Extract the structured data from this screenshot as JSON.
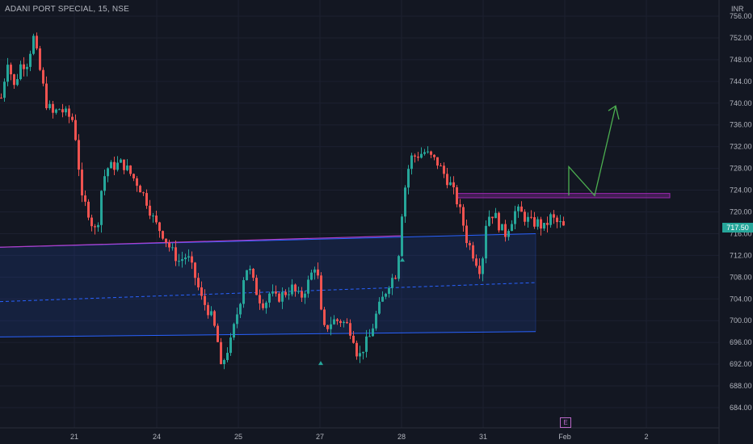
{
  "header": {
    "symbol_title": "ADANI PORT SPECIAL, 15, NSE",
    "currency": "INR"
  },
  "last_price": {
    "label": "717.50",
    "value": 717.5,
    "color": "#26a69a"
  },
  "event_marker": {
    "label": "E",
    "color": "#ba68c8"
  },
  "colors": {
    "up": "#26a69a",
    "down": "#ef5350",
    "background": "#131722",
    "channel": "#2962ff",
    "resistance_zone": "#9c27b0",
    "projection": "#4caf50"
  },
  "chart_data": {
    "type": "candlestick",
    "y_axis": {
      "range": [
        682,
        758
      ],
      "ticks": [
        684,
        688,
        692,
        696,
        700,
        704,
        708,
        712,
        716,
        720,
        724,
        728,
        732,
        736,
        740,
        744,
        748,
        752,
        756
      ]
    },
    "x_axis": {
      "ticks": [
        "21",
        "24",
        "25",
        "27",
        "28",
        "31",
        "Feb",
        "2"
      ]
    },
    "channel": {
      "upper": [
        713.5,
        716.0
      ],
      "middle": [
        703.5,
        707.0
      ],
      "lower": [
        697.0,
        698.0
      ]
    },
    "resistance_zone": [
      722.6,
      723.4
    ],
    "anchors": [
      {
        "x": 0,
        "c": 741
      },
      {
        "x": 8,
        "c": 748
      },
      {
        "x": 16,
        "c": 743
      },
      {
        "x": 24,
        "c": 747
      },
      {
        "x": 32,
        "c": 747.5
      },
      {
        "x": 40,
        "c": 752
      },
      {
        "x": 48,
        "c": 746
      },
      {
        "x": 56,
        "c": 740
      },
      {
        "x": 64,
        "c": 738
      },
      {
        "x": 72,
        "c": 739
      },
      {
        "x": 80,
        "c": 738
      },
      {
        "x": 88,
        "c": 737
      },
      {
        "x": 93,
        "c": 733
      },
      {
        "x": 100,
        "c": 722
      },
      {
        "x": 106,
        "c": 721
      },
      {
        "x": 112,
        "c": 718
      },
      {
        "x": 118,
        "c": 716
      },
      {
        "x": 124,
        "c": 724
      },
      {
        "x": 130,
        "c": 728
      },
      {
        "x": 140,
        "c": 728.5
      },
      {
        "x": 150,
        "c": 729
      },
      {
        "x": 160,
        "c": 727
      },
      {
        "x": 170,
        "c": 725
      },
      {
        "x": 180,
        "c": 722
      },
      {
        "x": 190,
        "c": 718
      },
      {
        "x": 200,
        "c": 716
      },
      {
        "x": 210,
        "c": 713
      },
      {
        "x": 220,
        "c": 711
      },
      {
        "x": 230,
        "c": 712
      },
      {
        "x": 240,
        "c": 708
      },
      {
        "x": 248,
        "c": 704
      },
      {
        "x": 256,
        "c": 702
      },
      {
        "x": 262,
        "c": 700
      },
      {
        "x": 268,
        "c": 696
      },
      {
        "x": 272,
        "c": 691
      },
      {
        "x": 278,
        "c": 694
      },
      {
        "x": 284,
        "c": 696
      },
      {
        "x": 290,
        "c": 700
      },
      {
        "x": 296,
        "c": 704
      },
      {
        "x": 302,
        "c": 710
      },
      {
        "x": 308,
        "c": 709
      },
      {
        "x": 314,
        "c": 706
      },
      {
        "x": 320,
        "c": 704
      },
      {
        "x": 326,
        "c": 703
      },
      {
        "x": 332,
        "c": 705
      },
      {
        "x": 340,
        "c": 704
      },
      {
        "x": 350,
        "c": 705
      },
      {
        "x": 360,
        "c": 706
      },
      {
        "x": 370,
        "c": 704
      },
      {
        "x": 380,
        "c": 707
      },
      {
        "x": 390,
        "c": 711
      },
      {
        "x": 398,
        "c": 698
      },
      {
        "x": 404,
        "c": 699
      },
      {
        "x": 410,
        "c": 700
      },
      {
        "x": 420,
        "c": 700
      },
      {
        "x": 430,
        "c": 699
      },
      {
        "x": 436,
        "c": 697
      },
      {
        "x": 442,
        "c": 693
      },
      {
        "x": 448,
        "c": 695
      },
      {
        "x": 456,
        "c": 697
      },
      {
        "x": 464,
        "c": 701
      },
      {
        "x": 472,
        "c": 704
      },
      {
        "x": 480,
        "c": 707
      },
      {
        "x": 490,
        "c": 709
      },
      {
        "x": 496,
        "c": 720
      },
      {
        "x": 502,
        "c": 727
      },
      {
        "x": 508,
        "c": 730
      },
      {
        "x": 516,
        "c": 730.5
      },
      {
        "x": 524,
        "c": 731
      },
      {
        "x": 532,
        "c": 730
      },
      {
        "x": 540,
        "c": 729
      },
      {
        "x": 548,
        "c": 727
      },
      {
        "x": 556,
        "c": 725
      },
      {
        "x": 564,
        "c": 722
      },
      {
        "x": 570,
        "c": 719
      },
      {
        "x": 576,
        "c": 715
      },
      {
        "x": 582,
        "c": 713
      },
      {
        "x": 588,
        "c": 711
      },
      {
        "x": 594,
        "c": 709
      },
      {
        "x": 600,
        "c": 718
      },
      {
        "x": 606,
        "c": 720
      },
      {
        "x": 612,
        "c": 719
      },
      {
        "x": 618,
        "c": 717
      },
      {
        "x": 624,
        "c": 716
      },
      {
        "x": 630,
        "c": 718
      },
      {
        "x": 636,
        "c": 720
      },
      {
        "x": 642,
        "c": 720
      },
      {
        "x": 648,
        "c": 719
      },
      {
        "x": 656,
        "c": 718
      },
      {
        "x": 664,
        "c": 718
      },
      {
        "x": 672,
        "c": 717
      },
      {
        "x": 680,
        "c": 719
      },
      {
        "x": 688,
        "c": 718
      },
      {
        "x": 696,
        "c": 717.5
      }
    ]
  }
}
